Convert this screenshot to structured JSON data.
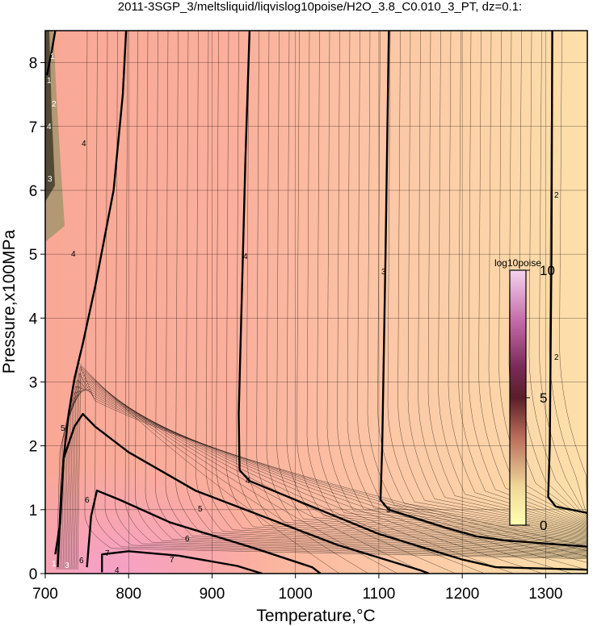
{
  "chart_data": {
    "type": "heatmap",
    "title": "2011-3SGP_3/meltsliquid/liqvislog10poise/H2O_3.8_C0.010_3_PT, dz=0.1:",
    "xlabel": "Temperature,°C",
    "ylabel": "Pressure,x100MPa",
    "xlim": [
      700,
      1350
    ],
    "ylim": [
      0,
      8.5
    ],
    "x_ticks": [
      700,
      800,
      900,
      1000,
      1100,
      1200,
      1300
    ],
    "y_ticks": [
      0,
      1,
      2,
      3,
      4,
      5,
      6,
      7,
      8
    ],
    "grid": true,
    "colorbar": {
      "label": "log10poise",
      "range": [
        0,
        10
      ],
      "ticks": [
        0,
        5,
        10
      ],
      "colors": [
        "#ffffb0",
        "#f0d898",
        "#b86a5a",
        "#5a1e28",
        "#7a2a58",
        "#c46aa8",
        "#f4d4ee"
      ]
    },
    "contour_labels": [
      "1",
      "1",
      "1",
      "2",
      "3",
      "3",
      "4",
      "4",
      "4",
      "4",
      "5",
      "5",
      "6",
      "6",
      "7",
      "7",
      "6",
      "4",
      "4",
      "3",
      "3",
      "2",
      "2"
    ],
    "major_contours": [
      {
        "level": 2,
        "points": [
          [
            1308,
            8.5
          ],
          [
            1307,
            5.0
          ],
          [
            1305,
            2.0
          ],
          [
            1303,
            1.2
          ],
          [
            1312,
            1.05
          ],
          [
            1350,
            0.95
          ]
        ]
      },
      {
        "level": 3,
        "points": [
          [
            1112,
            8.5
          ],
          [
            1108,
            5.0
          ],
          [
            1104,
            2.0
          ],
          [
            1102,
            1.15
          ],
          [
            1112,
            1.0
          ],
          [
            1180,
            0.72
          ],
          [
            1218,
            0.58
          ],
          [
            1250,
            0.52
          ],
          [
            1350,
            0.42
          ]
        ]
      },
      {
        "level": 4,
        "points": [
          [
            945,
            8.5
          ],
          [
            940,
            6.5
          ],
          [
            935,
            4.0
          ],
          [
            932,
            2.5
          ],
          [
            933,
            1.62
          ],
          [
            945,
            1.45
          ],
          [
            1010,
            1.1
          ],
          [
            1100,
            0.62
          ],
          [
            1200,
            0.22
          ],
          [
            1240,
            0.1
          ],
          [
            1350,
            0.06
          ]
        ]
      },
      {
        "level": 4,
        "points": [
          [
            712,
            0.3
          ],
          [
            718,
            0.8
          ],
          [
            722,
            1.8
          ],
          [
            728,
            2.5
          ],
          [
            735,
            3.05
          ],
          [
            745,
            3.6
          ],
          [
            760,
            4.5
          ],
          [
            782,
            6.0
          ],
          [
            793,
            7.5
          ],
          [
            797,
            8.5
          ]
        ]
      },
      {
        "level": 5,
        "points": [
          [
            715,
            0.1
          ],
          [
            718,
            1.0
          ],
          [
            722,
            1.8
          ],
          [
            735,
            2.3
          ],
          [
            745,
            2.5
          ],
          [
            760,
            2.3
          ],
          [
            800,
            1.9
          ],
          [
            880,
            1.3
          ],
          [
            950,
            0.95
          ],
          [
            1050,
            0.45
          ],
          [
            1150,
            0.05
          ],
          [
            1160,
            0.0
          ]
        ]
      },
      {
        "level": 6,
        "points": [
          [
            750,
            0.1
          ],
          [
            755,
            0.9
          ],
          [
            762,
            1.3
          ],
          [
            790,
            1.15
          ],
          [
            850,
            0.8
          ],
          [
            950,
            0.4
          ],
          [
            1020,
            0.1
          ],
          [
            1030,
            0.0
          ]
        ]
      },
      {
        "level": 7,
        "points": [
          [
            768,
            0.02
          ],
          [
            768,
            0.3
          ],
          [
            800,
            0.35
          ],
          [
            860,
            0.28
          ],
          [
            930,
            0.12
          ],
          [
            960,
            0.0
          ]
        ]
      },
      {
        "level": 1,
        "points": [
          [
            702,
            7.8
          ],
          [
            708,
            8.2
          ],
          [
            712,
            8.5
          ]
        ]
      }
    ]
  }
}
